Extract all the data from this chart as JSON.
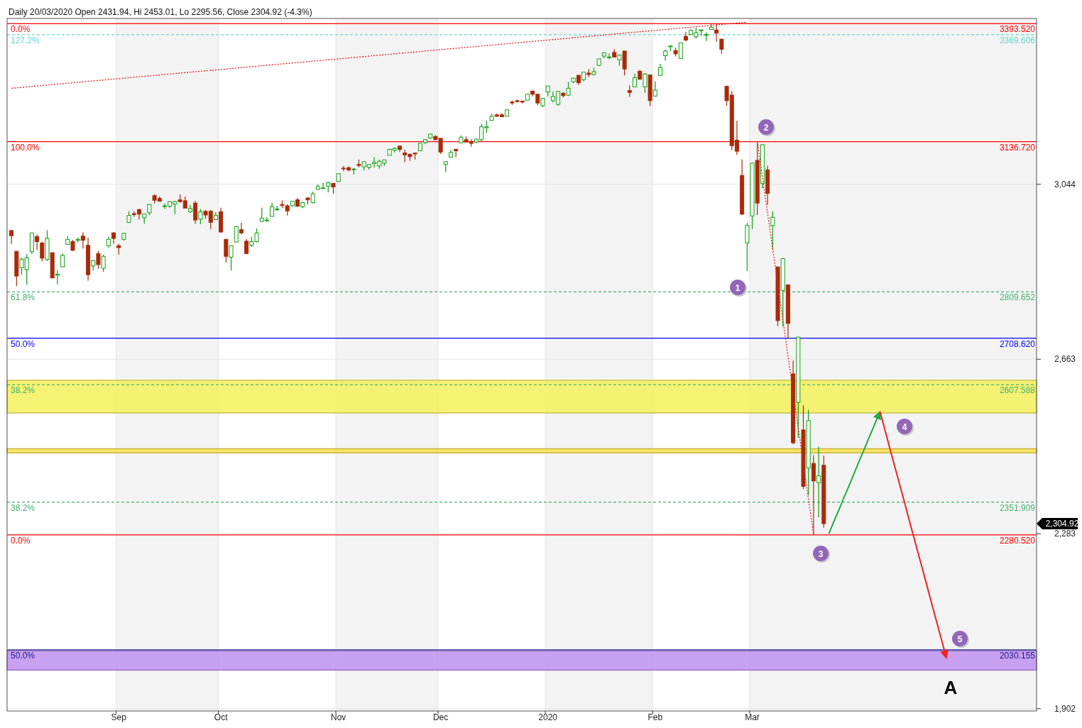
{
  "chart_data": {
    "type": "candlestick",
    "title": "Daily 20/03/2020 Open 2431.94, Hi 2453.01, Lo 2295.56, Close 2304.92 (-4.3%)",
    "categories": [
      null,
      null,
      null,
      null,
      null,
      null,
      null,
      null,
      null,
      null,
      null,
      null,
      null,
      null,
      null,
      null,
      null,
      null,
      null,
      null,
      null,
      "Sep",
      null,
      null,
      null,
      null,
      null,
      null,
      null,
      null,
      null,
      null,
      null,
      null,
      null,
      null,
      null,
      null,
      null,
      null,
      null,
      "Oct",
      null,
      null,
      null,
      null,
      null,
      null,
      null,
      null,
      null,
      null,
      null,
      null,
      null,
      null,
      null,
      null,
      null,
      null,
      null,
      null,
      null,
      null,
      "Nov",
      null,
      null,
      null,
      null,
      null,
      null,
      null,
      null,
      null,
      null,
      null,
      null,
      null,
      null,
      null,
      null,
      null,
      null,
      null,
      "Dec",
      null,
      null,
      null,
      null,
      null,
      null,
      null,
      null,
      null,
      null,
      null,
      null,
      null,
      null,
      null,
      null,
      null,
      null,
      null,
      null,
      "2020",
      null,
      null,
      null,
      null,
      null,
      null,
      null,
      null,
      null,
      null,
      null,
      null,
      null,
      null,
      null,
      null,
      null,
      null,
      null,
      null,
      "Feb",
      null,
      null,
      null,
      null,
      null,
      null,
      null,
      null,
      null,
      null,
      null,
      null,
      null,
      null,
      null,
      null,
      null,
      null,
      "Mar",
      null,
      null,
      null,
      null,
      null,
      null,
      null,
      null,
      null,
      null,
      null,
      null,
      null,
      null,
      null,
      null,
      null,
      null,
      null,
      null,
      null,
      null,
      null,
      null,
      null,
      null,
      null,
      null,
      null,
      null,
      null,
      null,
      null,
      null,
      null,
      null,
      null,
      null,
      null,
      null,
      null,
      null,
      null,
      null,
      null,
      null,
      null,
      null,
      null,
      null,
      null,
      null,
      null,
      null,
      null
    ],
    "ylim": [
      1897,
      3405
    ],
    "yticks": [
      {
        "value": 1902,
        "label": "1,902"
      },
      {
        "value": 2283,
        "label": "2,283"
      },
      {
        "value": 2663,
        "label": "2,663"
      },
      {
        "value": 3044,
        "label": "3,044"
      }
    ],
    "grid": true,
    "series": [
      {
        "ohlc": [
          [
            2943,
            2945,
            2914,
            2932
          ],
          [
            2898,
            2898,
            2822,
            2844
          ],
          [
            2862,
            2884,
            2847,
            2881
          ],
          [
            2858,
            2892,
            2825,
            2884
          ],
          [
            2897,
            2938,
            2892,
            2938
          ],
          [
            2930,
            2935,
            2901,
            2919
          ],
          [
            2916,
            2919,
            2876,
            2883
          ],
          [
            2880,
            2944,
            2877,
            2926
          ],
          [
            2895,
            2895,
            2839,
            2840
          ],
          [
            2846,
            2857,
            2826,
            2848
          ],
          [
            2864,
            2893,
            2864,
            2889
          ],
          [
            2913,
            2931,
            2913,
            2924
          ],
          [
            2919,
            2923,
            2899,
            2900
          ],
          [
            2922,
            2928,
            2917,
            2924
          ],
          [
            2931,
            2939,
            2904,
            2922
          ],
          [
            2911,
            2927,
            2834,
            2847
          ],
          [
            2866,
            2879,
            2856,
            2878
          ],
          [
            2893,
            2899,
            2860,
            2869
          ],
          [
            2861,
            2891,
            2853,
            2887
          ],
          [
            2910,
            2930,
            2905,
            2924
          ],
          [
            2938,
            2940,
            2914,
            2926
          ],
          [
            2910,
            2914,
            2891,
            2906
          ],
          [
            2924,
            2938,
            2921,
            2937
          ],
          [
            2961,
            2985,
            2961,
            2976
          ],
          [
            2980,
            2985,
            2973,
            2978
          ],
          [
            2989,
            2990,
            2967,
            2979
          ],
          [
            2971,
            2979,
            2958,
            2979
          ],
          [
            2982,
            3000,
            2977,
            3000
          ],
          [
            3019,
            3022,
            3002,
            3009
          ],
          [
            3013,
            3017,
            3006,
            3007
          ],
          [
            2996,
            3002,
            2990,
            2997
          ],
          [
            2996,
            3006,
            2993,
            3006
          ],
          [
            3001,
            3008,
            2979,
            3006
          ],
          [
            3010,
            3022,
            3004,
            3006
          ],
          [
            3008,
            3017,
            2992,
            2992
          ],
          [
            2984,
            2999,
            2982,
            2991
          ],
          [
            3003,
            3008,
            2958,
            2966
          ],
          [
            2968,
            2990,
            2957,
            2984
          ],
          [
            2985,
            2988,
            2969,
            2977
          ],
          [
            2985,
            2988,
            2946,
            2961
          ],
          [
            2967,
            2983,
            2967,
            2976
          ],
          [
            2984,
            2993,
            2938,
            2940
          ],
          [
            2924,
            2925,
            2874,
            2887
          ],
          [
            2885,
            2911,
            2856,
            2910
          ],
          [
            2918,
            2953,
            2918,
            2952
          ],
          [
            2945,
            2960,
            2935,
            2938
          ],
          [
            2920,
            2925,
            2892,
            2893
          ],
          [
            2911,
            2929,
            2907,
            2919
          ],
          [
            2919,
            2948,
            2917,
            2938
          ],
          [
            2963,
            2993,
            2963,
            2970
          ],
          [
            2966,
            2972,
            2962,
            2966
          ],
          [
            2974,
            3004,
            2974,
            2995
          ],
          [
            2990,
            2997,
            2986,
            2990
          ],
          [
            3000,
            3009,
            2992,
            2998
          ],
          [
            2997,
            3000,
            2976,
            2986
          ],
          [
            2997,
            3008,
            2995,
            3007
          ],
          [
            3010,
            3014,
            2995,
            2996
          ],
          [
            2995,
            3005,
            2992,
            3004
          ],
          [
            3014,
            3016,
            3000,
            3010
          ],
          [
            3004,
            3028,
            3002,
            3023
          ],
          [
            3033,
            3044,
            3032,
            3039
          ],
          [
            3036,
            3047,
            3034,
            3036
          ],
          [
            3040,
            3050,
            3026,
            3047
          ],
          [
            3046,
            3047,
            3023,
            3038
          ],
          [
            3050,
            3067,
            3050,
            3067
          ],
          [
            3079,
            3084,
            3073,
            3078
          ],
          [
            3080,
            3083,
            3072,
            3075
          ],
          [
            3076,
            3079,
            3065,
            3077
          ],
          [
            3087,
            3098,
            3081,
            3085
          ],
          [
            3082,
            3094,
            3074,
            3093
          ],
          [
            3081,
            3088,
            3076,
            3087
          ],
          [
            3089,
            3103,
            3080,
            3092
          ],
          [
            3084,
            3098,
            3078,
            3094
          ],
          [
            3090,
            3097,
            3084,
            3097
          ],
          [
            3107,
            3121,
            3107,
            3120
          ],
          [
            3118,
            3124,
            3113,
            3122
          ],
          [
            3127,
            3127,
            3114,
            3120
          ],
          [
            3112,
            3119,
            3092,
            3108
          ],
          [
            3109,
            3111,
            3095,
            3104
          ],
          [
            3112,
            3113,
            3098,
            3110
          ],
          [
            3117,
            3133,
            3117,
            3133
          ],
          [
            3135,
            3142,
            3131,
            3141
          ],
          [
            3145,
            3154,
            3143,
            3153
          ],
          [
            3148,
            3151,
            3140,
            3141
          ],
          [
            3144,
            3144,
            3110,
            3114
          ],
          [
            3087,
            3094,
            3070,
            3093
          ],
          [
            3103,
            3119,
            3103,
            3113
          ],
          [
            3120,
            3121,
            3103,
            3117
          ],
          [
            3134,
            3150,
            3134,
            3146
          ],
          [
            3141,
            3148,
            3135,
            3136
          ],
          [
            3135,
            3142,
            3126,
            3133
          ],
          [
            3136,
            3143,
            3133,
            3142
          ],
          [
            3141,
            3176,
            3138,
            3169
          ],
          [
            3167,
            3182,
            3156,
            3169
          ],
          [
            3183,
            3198,
            3183,
            3192
          ],
          [
            3195,
            3198,
            3191,
            3192
          ],
          [
            3195,
            3199,
            3191,
            3191
          ],
          [
            3192,
            3207,
            3192,
            3206
          ],
          [
            3223,
            3226,
            3217,
            3221
          ],
          [
            3226,
            3228,
            3222,
            3224
          ],
          [
            3225,
            3226,
            3220,
            3223
          ],
          [
            3227,
            3240,
            3227,
            3240
          ],
          [
            3247,
            3247,
            3235,
            3240
          ],
          [
            3240,
            3240,
            3216,
            3221
          ],
          [
            3215,
            3231,
            3212,
            3231
          ],
          [
            3245,
            3258,
            3235,
            3258
          ],
          [
            3226,
            3246,
            3222,
            3235
          ],
          [
            3218,
            3247,
            3215,
            3246
          ],
          [
            3242,
            3245,
            3233,
            3237
          ],
          [
            3238,
            3267,
            3236,
            3253
          ],
          [
            3267,
            3275,
            3264,
            3275
          ],
          [
            3281,
            3283,
            3260,
            3265
          ],
          [
            3272,
            3288,
            3268,
            3288
          ],
          [
            3286,
            3295,
            3277,
            3283
          ],
          [
            3283,
            3298,
            3281,
            3289
          ],
          [
            3303,
            3317,
            3301,
            3317
          ],
          [
            3323,
            3330,
            3318,
            3330
          ],
          [
            3321,
            3329,
            3316,
            3321
          ],
          [
            3331,
            3338,
            3320,
            3321
          ],
          [
            3315,
            3327,
            3302,
            3325
          ],
          [
            3334,
            3334,
            3281,
            3295
          ],
          [
            3248,
            3259,
            3234,
            3244
          ],
          [
            3256,
            3285,
            3255,
            3276
          ],
          [
            3290,
            3293,
            3271,
            3273
          ],
          [
            3256,
            3286,
            3243,
            3284
          ],
          [
            3282,
            3282,
            3214,
            3226
          ],
          [
            3236,
            3268,
            3236,
            3249
          ],
          [
            3281,
            3306,
            3281,
            3298
          ],
          [
            3324,
            3337,
            3313,
            3334
          ],
          [
            3344,
            3347,
            3334,
            3345
          ],
          [
            3335,
            3341,
            3322,
            3328
          ],
          [
            3318,
            3352,
            3317,
            3352
          ],
          [
            3366,
            3376,
            3355,
            3358
          ],
          [
            3370,
            3381,
            3369,
            3379
          ],
          [
            3365,
            3385,
            3361,
            3374
          ],
          [
            3379,
            3381,
            3367,
            3380
          ],
          [
            3369,
            3375,
            3356,
            3370
          ],
          [
            3381,
            3394,
            3381,
            3386
          ],
          [
            3380,
            3393,
            3354,
            3373
          ],
          [
            3360,
            3360,
            3328,
            3338
          ],
          [
            3257,
            3259,
            3215,
            3226
          ],
          [
            3238,
            3247,
            3118,
            3128
          ],
          [
            3140,
            3182,
            3108,
            3116
          ],
          [
            3063,
            3098,
            2977,
            2979
          ],
          [
            2916,
            2960,
            2855,
            2954
          ],
          [
            2975,
            3091,
            2946,
            3090
          ],
          [
            3096,
            3137,
            2977,
            3003
          ],
          [
            3046,
            3131,
            3035,
            3130
          ],
          [
            3075,
            3084,
            2999,
            3024
          ],
          [
            2954,
            2985,
            2901,
            2972
          ],
          [
            2864,
            2864,
            2735,
            2747
          ],
          [
            2813,
            2883,
            2734,
            2882
          ],
          [
            2825,
            2825,
            2707,
            2741
          ],
          [
            2631,
            2660,
            2478,
            2481
          ],
          [
            2569,
            2711,
            2492,
            2711
          ],
          [
            2509,
            2563,
            2380,
            2386
          ],
          [
            2426,
            2553,
            2367,
            2529
          ],
          [
            2436,
            2454,
            2281,
            2398
          ],
          [
            2394,
            2473,
            2319,
            2409
          ],
          [
            2432,
            2453,
            2296,
            2305
          ],
          null,
          null,
          null,
          null,
          null,
          null,
          null,
          null,
          null,
          null,
          null,
          null,
          null,
          null,
          null,
          null,
          null,
          null,
          null,
          null,
          null,
          null,
          null,
          null,
          null,
          null,
          null,
          null,
          null,
          null,
          null,
          null,
          null,
          null,
          null,
          null,
          null,
          null,
          null,
          null,
          null
        ]
      },
      {
        "type": "line",
        "color": "#e82020",
        "line_style": "dotted",
        "values": [
          3253,
          3254,
          3255,
          3256,
          3257,
          3258,
          3259,
          3260,
          3261,
          3262,
          3263,
          3264,
          3265,
          3266,
          3267,
          3268,
          3269,
          3270,
          3271,
          3272,
          3273,
          3274,
          3275,
          3276,
          3277,
          3278,
          3279,
          3280,
          3281,
          3282,
          3283,
          3284,
          3285,
          3286,
          3287,
          3288,
          3289,
          3290,
          3291,
          3292,
          3293,
          3294,
          3295,
          3296,
          3297,
          3298,
          3299,
          3300,
          3301,
          3302,
          3303,
          3304,
          3305,
          3306,
          3307,
          3308,
          3309,
          3310,
          3311,
          3312,
          3313,
          3314,
          3315,
          3316,
          3317,
          3318,
          3319,
          3320,
          3321,
          3322,
          3323,
          3324,
          3325,
          3326,
          3327,
          3328,
          3329,
          3330,
          3331,
          3332,
          3333,
          3334,
          3335,
          3336,
          3337,
          3338,
          3339,
          3340,
          3341,
          3342,
          3343,
          3344,
          3345,
          3346,
          3347,
          3348,
          3349,
          3350,
          3351,
          3352,
          3353,
          3354,
          3355,
          3356,
          3357,
          3358,
          3359,
          3360,
          3361,
          3362,
          3363,
          3364,
          3365,
          3366,
          3367,
          3368,
          3369,
          3370,
          3371,
          3372,
          3373,
          3374,
          3375,
          3376,
          3377,
          3378,
          3379,
          3380,
          3381,
          3382,
          3383,
          3384,
          3385,
          3386,
          3387,
          3388,
          3389,
          3390,
          3391,
          3392,
          3393,
          3394,
          3395,
          3396,
          3397,
          null,
          null,
          null,
          null,
          null,
          null,
          null,
          null,
          null,
          null,
          null,
          null,
          null,
          null,
          null,
          null,
          null,
          null,
          null,
          null,
          null,
          null,
          null,
          null,
          null,
          null,
          null,
          null,
          null,
          null,
          null,
          null,
          null,
          null,
          null,
          null,
          null,
          null,
          null,
          null,
          null,
          null,
          null,
          null,
          null,
          null,
          null,
          null,
          null,
          null,
          null,
          null,
          null,
          null,
          null,
          null
        ]
      },
      {
        "type": "line",
        "color": "#e82020",
        "line_style": "dotted",
        "values": [
          null,
          null,
          null,
          null,
          null,
          null,
          null,
          null,
          null,
          null,
          null,
          null,
          null,
          null,
          null,
          null,
          null,
          null,
          null,
          null,
          null,
          null,
          null,
          null,
          null,
          null,
          null,
          null,
          null,
          null,
          null,
          null,
          null,
          null,
          null,
          null,
          null,
          null,
          null,
          null,
          null,
          null,
          null,
          null,
          null,
          null,
          null,
          null,
          null,
          null,
          null,
          null,
          null,
          null,
          null,
          null,
          null,
          null,
          null,
          null,
          null,
          null,
          null,
          null,
          null,
          null,
          null,
          null,
          null,
          null,
          null,
          null,
          null,
          null,
          null,
          null,
          null,
          null,
          null,
          null,
          null,
          null,
          null,
          null,
          null,
          null,
          null,
          null,
          null,
          null,
          null,
          null,
          null,
          null,
          null,
          null,
          null,
          null,
          null,
          null,
          null,
          null,
          null,
          null,
          null,
          null,
          null,
          null,
          null,
          null,
          null,
          null,
          null,
          null,
          null,
          null,
          null,
          null,
          null,
          null,
          null,
          null,
          null,
          null,
          null,
          null,
          null,
          null,
          null,
          null,
          null,
          null,
          null,
          null,
          null,
          null,
          null,
          null,
          null,
          null,
          null,
          null,
          null,
          null,
          null,
          null,
          3137,
          3059,
          2981,
          2904,
          2826,
          2748,
          2670,
          2592,
          2514,
          2436,
          2358,
          2281,
          null,
          null,
          null,
          null,
          null,
          null,
          null,
          null,
          null,
          null,
          null,
          null,
          null,
          null,
          null,
          null,
          null,
          null,
          null,
          null,
          null,
          null,
          null,
          null,
          null,
          null,
          null,
          null,
          null,
          null,
          null,
          null,
          null,
          null,
          null,
          null,
          null,
          null,
          null,
          null,
          null,
          null,
          null
        ]
      },
      {
        "type": "line",
        "color": "#22aa44",
        "line_style": "solid",
        "values": [
          null,
          null,
          null,
          null,
          null,
          null,
          null,
          null,
          null,
          null,
          null,
          null,
          null,
          null,
          null,
          null,
          null,
          null,
          null,
          null,
          null,
          null,
          null,
          null,
          null,
          null,
          null,
          null,
          null,
          null,
          null,
          null,
          null,
          null,
          null,
          null,
          null,
          null,
          null,
          null,
          null,
          null,
          null,
          null,
          null,
          null,
          null,
          null,
          null,
          null,
          null,
          null,
          null,
          null,
          null,
          null,
          null,
          null,
          null,
          null,
          null,
          null,
          null,
          null,
          null,
          null,
          null,
          null,
          null,
          null,
          null,
          null,
          null,
          null,
          null,
          null,
          null,
          null,
          null,
          null,
          null,
          null,
          null,
          null,
          null,
          null,
          null,
          null,
          null,
          null,
          null,
          null,
          null,
          null,
          null,
          null,
          null,
          null,
          null,
          null,
          null,
          null,
          null,
          null,
          null,
          null,
          null,
          null,
          null,
          null,
          null,
          null,
          null,
          null,
          null,
          null,
          null,
          null,
          null,
          null,
          null,
          null,
          null,
          null,
          null,
          null,
          null,
          null,
          null,
          null,
          null,
          null,
          null,
          null,
          null,
          null,
          null,
          null,
          null,
          null,
          null,
          null,
          null,
          null,
          null,
          null,
          null,
          null,
          null,
          null,
          null,
          null,
          null,
          null,
          null,
          null,
          null,
          null,
          null,
          null,
          2283,
          2310,
          2336,
          2363,
          2389,
          2416,
          2443,
          2469,
          2496,
          2522,
          2549,
          null,
          null,
          null,
          null,
          null,
          null,
          null,
          null,
          null,
          null,
          null,
          null,
          null,
          null,
          null,
          null,
          null,
          null,
          null,
          null,
          null,
          null,
          null,
          null,
          null,
          null,
          null,
          null,
          null,
          null
        ]
      },
      {
        "type": "line",
        "color": "#ee2222",
        "line_style": "solid",
        "values": [
          null,
          null,
          null,
          null,
          null,
          null,
          null,
          null,
          null,
          null,
          null,
          null,
          null,
          null,
          null,
          null,
          null,
          null,
          null,
          null,
          null,
          null,
          null,
          null,
          null,
          null,
          null,
          null,
          null,
          null,
          null,
          null,
          null,
          null,
          null,
          null,
          null,
          null,
          null,
          null,
          null,
          null,
          null,
          null,
          null,
          null,
          null,
          null,
          null,
          null,
          null,
          null,
          null,
          null,
          null,
          null,
          null,
          null,
          null,
          null,
          null,
          null,
          null,
          null,
          null,
          null,
          null,
          null,
          null,
          null,
          null,
          null,
          null,
          null,
          null,
          null,
          null,
          null,
          null,
          null,
          null,
          null,
          null,
          null,
          null,
          null,
          null,
          null,
          null,
          null,
          null,
          null,
          null,
          null,
          null,
          null,
          null,
          null,
          null,
          null,
          null,
          null,
          null,
          null,
          null,
          null,
          null,
          null,
          null,
          null,
          null,
          null,
          null,
          null,
          null,
          null,
          null,
          null,
          null,
          null,
          null,
          null,
          null,
          null,
          null,
          null,
          null,
          null,
          null,
          null,
          null,
          null,
          null,
          null,
          null,
          null,
          null,
          null,
          null,
          null,
          null,
          null,
          null,
          null,
          null,
          null,
          null,
          null,
          null,
          null,
          null,
          null,
          null,
          null,
          null,
          null,
          null,
          null,
          null,
          null,
          null,
          null,
          null,
          null,
          null,
          null,
          null,
          null,
          null,
          null,
          2549,
          2508,
          2466,
          2425,
          2384,
          2343,
          2301,
          2260,
          2219,
          2178,
          2136,
          2095,
          2054,
          2012,
          null,
          null,
          null,
          null,
          null,
          null,
          null,
          null,
          null,
          null,
          null,
          null,
          null,
          null,
          null,
          null,
          null
        ]
      }
    ],
    "ref_lines": [
      {
        "axis": "y",
        "value": 3393.52,
        "label": "3393.520",
        "color": "#ff0000",
        "line_style": "solid"
      },
      {
        "axis": "y",
        "value": 3369.606,
        "label": "3369.606",
        "color": "#66d6d0",
        "line_style": "dashed"
      },
      {
        "axis": "y",
        "value": 3136.72,
        "label": "3136.720",
        "color": "#ff0000",
        "line_style": "solid"
      },
      {
        "axis": "y",
        "value": 2809.652,
        "label": "2809.652",
        "color": "#44b070",
        "line_style": "dashed"
      },
      {
        "axis": "y",
        "value": 2708.62,
        "label": "2708.620",
        "color": "#0000ff",
        "line_style": "solid"
      },
      {
        "axis": "y",
        "value": 2607.588,
        "label": "2607.588",
        "color": "#44b070",
        "line_style": "dashed"
      },
      {
        "axis": "y",
        "value": 2351.909,
        "label": "2351.909",
        "color": "#44b070",
        "line_style": "dashed"
      },
      {
        "axis": "y",
        "value": 2280.52,
        "label": "2280.520",
        "color": "#ff0000",
        "line_style": "solid"
      },
      {
        "axis": "y",
        "value": 2030.155,
        "label": "2030.155",
        "color": "#1a1a90",
        "line_style": "solid"
      }
    ],
    "bands": [
      {
        "axis": "y",
        "from": 2546,
        "to": 2617,
        "color": "#f5f05a"
      },
      {
        "axis": "y",
        "from": 2459,
        "to": 2468,
        "color": "#f8e050"
      },
      {
        "axis": "y",
        "from": 1986,
        "to": 2028,
        "color": "#c090f0"
      }
    ],
    "annotations": [
      {
        "text": "0.0%",
        "y": 3393.52
      },
      {
        "text": "127.2%",
        "y": 3369.606
      },
      {
        "text": "100.0%",
        "y": 3136.72
      },
      {
        "text": "61.8%",
        "y": 2809.652
      },
      {
        "text": "50.0%",
        "y": 2708.62
      },
      {
        "text": "38.2%",
        "y": 2607.588
      },
      {
        "text": "38.2%",
        "y": 2351.909
      },
      {
        "text": "0.0%",
        "y": 2280.52
      },
      {
        "text": "50.0%",
        "y": 2030.155
      },
      "1",
      "2",
      "3",
      "4",
      "5",
      "A",
      "2,304.92"
    ]
  }
}
